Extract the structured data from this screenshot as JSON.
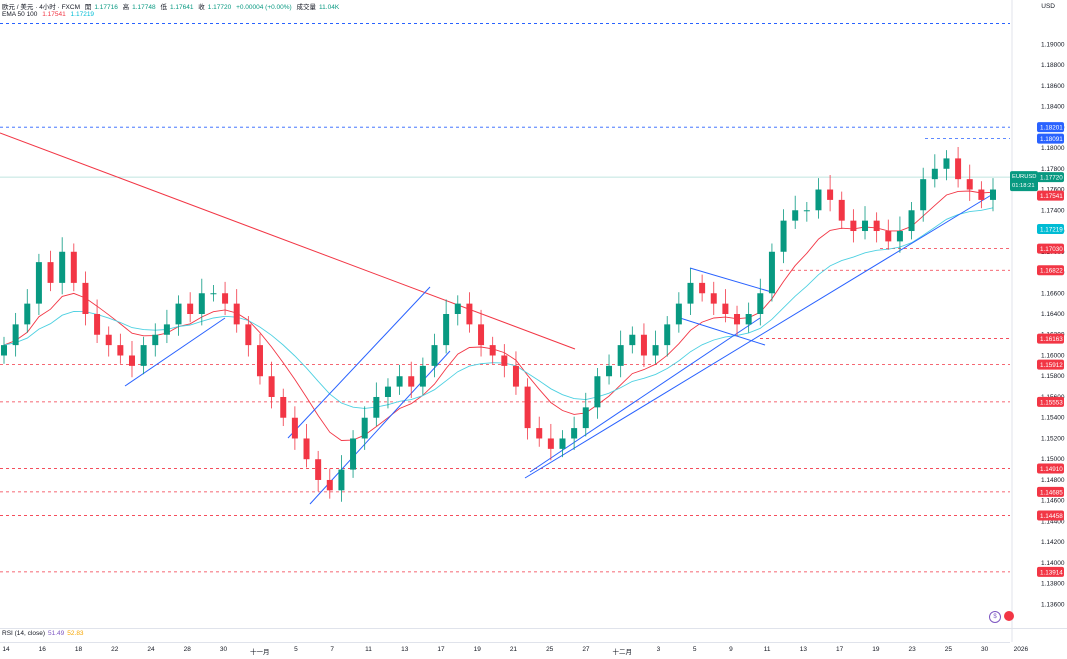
{
  "legend": {
    "symbol": "欧元 / 美元 · 4小时 · FXCM",
    "open_label": "開",
    "open": "1.17716",
    "high_label": "高",
    "high": "1.17748",
    "low_label": "低",
    "low": "1.17641",
    "close_label": "收",
    "close": "1.17720",
    "change": "+0.00004 (+0.00%)",
    "volume_label": "成交量",
    "volume": "11.04K",
    "ema_label": "EMA 50 100",
    "ema50_value": "1.17541",
    "ema100_value": "1.17219"
  },
  "currency": "USD",
  "rsi": {
    "label": "RSI (14, close)",
    "value1": "51.49",
    "value2": "52.83"
  },
  "price_badge": {
    "symbol": "EURUSD",
    "price": "1.17720",
    "countdown": "01:18:21"
  },
  "colors": {
    "up": "#089981",
    "down": "#f23645",
    "ema50": "#f23645",
    "ema100": "#4dd0e1",
    "trend": "#2962ff",
    "hline_red": "#f23645",
    "hline_blue": "#2962ff"
  },
  "chart_data": {
    "type": "candlestick",
    "title": "欧元 / 美元 · 4小时 · FXCM",
    "ylim": [
      1.1345,
      1.1935
    ],
    "y_ticks": [
      "1.19000",
      "1.18800",
      "1.18600",
      "1.18400",
      "1.18200",
      "1.18000",
      "1.17800",
      "1.17600",
      "1.17400",
      "1.17200",
      "1.17000",
      "1.16800",
      "1.16600",
      "1.16400",
      "1.16200",
      "1.16000",
      "1.15800",
      "1.15600",
      "1.15400",
      "1.15200",
      "1.15000",
      "1.14800",
      "1.14600",
      "1.14400",
      "1.14200",
      "1.14000",
      "1.13800",
      "1.13600"
    ],
    "x_ticks": [
      "14",
      "16",
      "18",
      "22",
      "24",
      "28",
      "30",
      "十一月",
      "5",
      "7",
      "11",
      "13",
      "17",
      "19",
      "21",
      "25",
      "27",
      "十二月",
      "3",
      "5",
      "9",
      "11",
      "13",
      "17",
      "19",
      "23",
      "25",
      "30",
      "2026"
    ],
    "price_levels": [
      {
        "value": 1.18201,
        "label": "1.18201",
        "color": "blue"
      },
      {
        "value": 1.18091,
        "label": "1.18091",
        "color": "blue"
      },
      {
        "value": 1.17541,
        "label": "1.17541",
        "color": "red"
      },
      {
        "value": 1.17219,
        "label": "1.17219",
        "color": "cyan"
      },
      {
        "value": 1.1703,
        "label": "1.17030",
        "color": "red"
      },
      {
        "value": 1.16822,
        "label": "1.16822",
        "color": "red"
      },
      {
        "value": 1.16163,
        "label": "1.16163",
        "color": "red"
      },
      {
        "value": 1.15912,
        "label": "1.15912",
        "color": "red"
      },
      {
        "value": 1.15553,
        "label": "1.15553",
        "color": "red"
      },
      {
        "value": 1.1491,
        "label": "1.14910",
        "color": "red"
      },
      {
        "value": 1.14685,
        "label": "1.14685",
        "color": "red"
      },
      {
        "value": 1.14458,
        "label": "1.14458",
        "color": "red"
      },
      {
        "value": 1.13914,
        "label": "1.13914",
        "color": "red"
      }
    ],
    "top_level": 1.192,
    "close_series": [
      1.161,
      1.163,
      1.165,
      1.169,
      1.167,
      1.17,
      1.167,
      1.164,
      1.162,
      1.161,
      1.16,
      1.159,
      1.161,
      1.162,
      1.163,
      1.165,
      1.164,
      1.166,
      1.166,
      1.165,
      1.163,
      1.161,
      1.158,
      1.156,
      1.154,
      1.152,
      1.15,
      1.148,
      1.147,
      1.149,
      1.152,
      1.154,
      1.156,
      1.157,
      1.158,
      1.157,
      1.159,
      1.161,
      1.164,
      1.165,
      1.163,
      1.161,
      1.16,
      1.159,
      1.157,
      1.153,
      1.152,
      1.151,
      1.152,
      1.153,
      1.155,
      1.158,
      1.159,
      1.161,
      1.162,
      1.16,
      1.161,
      1.163,
      1.165,
      1.167,
      1.166,
      1.165,
      1.164,
      1.163,
      1.164,
      1.166,
      1.17,
      1.173,
      1.174,
      1.174,
      1.176,
      1.175,
      1.173,
      1.172,
      1.173,
      1.172,
      1.171,
      1.172,
      1.174,
      1.177,
      1.178,
      1.179,
      1.177,
      1.176,
      1.175,
      1.176
    ]
  }
}
